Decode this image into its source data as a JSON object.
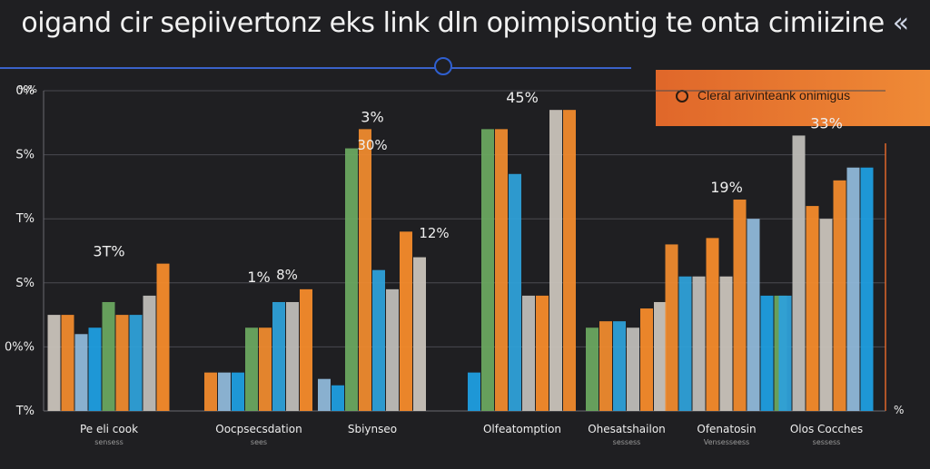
{
  "title": "oigand cir sepiivertonz eks link dln opimpisontig te onta cimiizine",
  "title_mark": "«",
  "legend": {
    "label": "Cleral arivinteank onimigus"
  },
  "chart_data": {
    "type": "bar",
    "title": "oigand cir sepiivertonz eks link dln opimpisontig te onta cimiizine",
    "ylim": [
      0,
      5
    ],
    "y_ticks": [
      "T%",
      "0%%",
      "S%",
      "T%",
      "S%",
      "0%"
    ],
    "right_tick": "%",
    "axis_mark": "%%",
    "categories": [
      {
        "label": "Pe eli cook",
        "sublabel": "sensess",
        "annotation": "3T%",
        "values": [
          1.5,
          1.5,
          1.2,
          1.3,
          1.7,
          1.5,
          1.5,
          1.8,
          2.3
        ]
      },
      {
        "label": "Oocpsecsdation",
        "sublabel": "sees",
        "annotation": "1%",
        "values": [
          0.6,
          0.6,
          0.6,
          1.3,
          1.3,
          1.7,
          1.7,
          1.9
        ]
      },
      {
        "label": "Sbiynseo",
        "sublabel": "",
        "annotation": "3%",
        "values": [
          0.5,
          0.4,
          4.1,
          4.4,
          2.2,
          1.9,
          2.8,
          2.4
        ]
      },
      {
        "label": "Olfeatomption",
        "sublabel": "",
        "annotation": "45%",
        "values": [
          0.6,
          4.4,
          4.4,
          3.7,
          1.8,
          1.8,
          4.7,
          4.7
        ]
      },
      {
        "label": "Ohesatshailon",
        "sublabel": "sessess",
        "annotation": "",
        "values": [
          1.3,
          1.4,
          1.4,
          1.3,
          1.6,
          1.7
        ]
      },
      {
        "label": "Ofenatosin",
        "sublabel": "Vensesseess",
        "annotation": "19%",
        "values": [
          2.6,
          2.1,
          2.1,
          2.7,
          2.1,
          3.3,
          3.0,
          1.8,
          1.8
        ]
      },
      {
        "label": "Olos Cocches",
        "sublabel": "sessess",
        "annotation": "33%",
        "values": [
          1.8,
          4.3,
          3.2,
          3.0,
          3.6,
          3.8,
          3.8
        ]
      }
    ],
    "floating_labels": [
      "30%",
      "12%",
      "8%"
    ],
    "palette": [
      "#c9c3bb",
      "#f08a2d",
      "#8fb8d9",
      "#1f9ee0",
      "#6aa660",
      "#ee8a2e",
      "#2ea0d8",
      "#bfbdb8",
      "#f58b2b"
    ]
  }
}
